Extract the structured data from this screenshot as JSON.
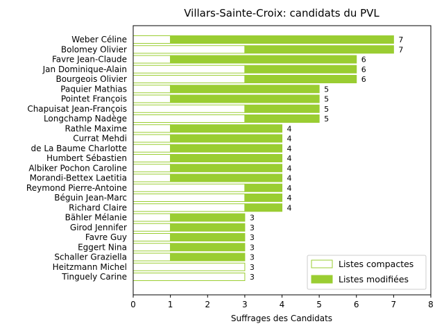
{
  "chart_data": {
    "type": "bar",
    "orientation": "horizontal",
    "stacked": true,
    "title": "Villars-Sainte-Croix: candidats du PVL",
    "xlabel": "Suffrages des Candidats",
    "ylabel": "",
    "xlim": [
      0,
      8
    ],
    "xticks": [
      "0",
      "1",
      "2",
      "3",
      "4",
      "5",
      "6",
      "7",
      "8"
    ],
    "grid": false,
    "legend_position": "bottom-right",
    "categories": [
      "Weber Céline",
      "Bolomey Olivier",
      "Favre Jean-Claude",
      "Jan Dominique-Alain",
      "Bourgeois Olivier",
      "Paquier Mathias",
      "Pointet François",
      "Chapuisat Jean-François",
      "Longchamp Nadège",
      "Rathle Maxime",
      "Currat Mehdi",
      "de La Baume Charlotte",
      "Humbert Sébastien",
      "Albiker Pochon Caroline",
      "Morandi-Bettex Laetitia",
      "Reymond Pierre-Antoine",
      "Béguin Jean-Marc",
      "Richard Claire",
      "Bähler Mélanie",
      "Girod Jennifer",
      "Favre Guy",
      "Eggert Nina",
      "Schaller Graziella",
      "Heitzmann Michel",
      "Tinguely Carine"
    ],
    "series": [
      {
        "name": "Listes compactes",
        "color": "#ffffff",
        "edge_color": "#9acd32",
        "values": [
          1,
          3,
          1,
          3,
          3,
          1,
          1,
          3,
          3,
          1,
          1,
          1,
          1,
          1,
          1,
          3,
          3,
          3,
          1,
          1,
          1,
          1,
          1,
          3,
          3
        ]
      },
      {
        "name": "Listes modifiées",
        "color": "#9acd32",
        "edge_color": "#9acd32",
        "values": [
          6,
          4,
          5,
          3,
          3,
          4,
          4,
          2,
          2,
          3,
          3,
          3,
          3,
          3,
          3,
          1,
          1,
          1,
          2,
          2,
          2,
          2,
          2,
          0,
          0
        ]
      }
    ],
    "totals": [
      7,
      7,
      6,
      6,
      6,
      5,
      5,
      5,
      5,
      4,
      4,
      4,
      4,
      4,
      4,
      4,
      4,
      4,
      3,
      3,
      3,
      3,
      3,
      3,
      3
    ]
  }
}
